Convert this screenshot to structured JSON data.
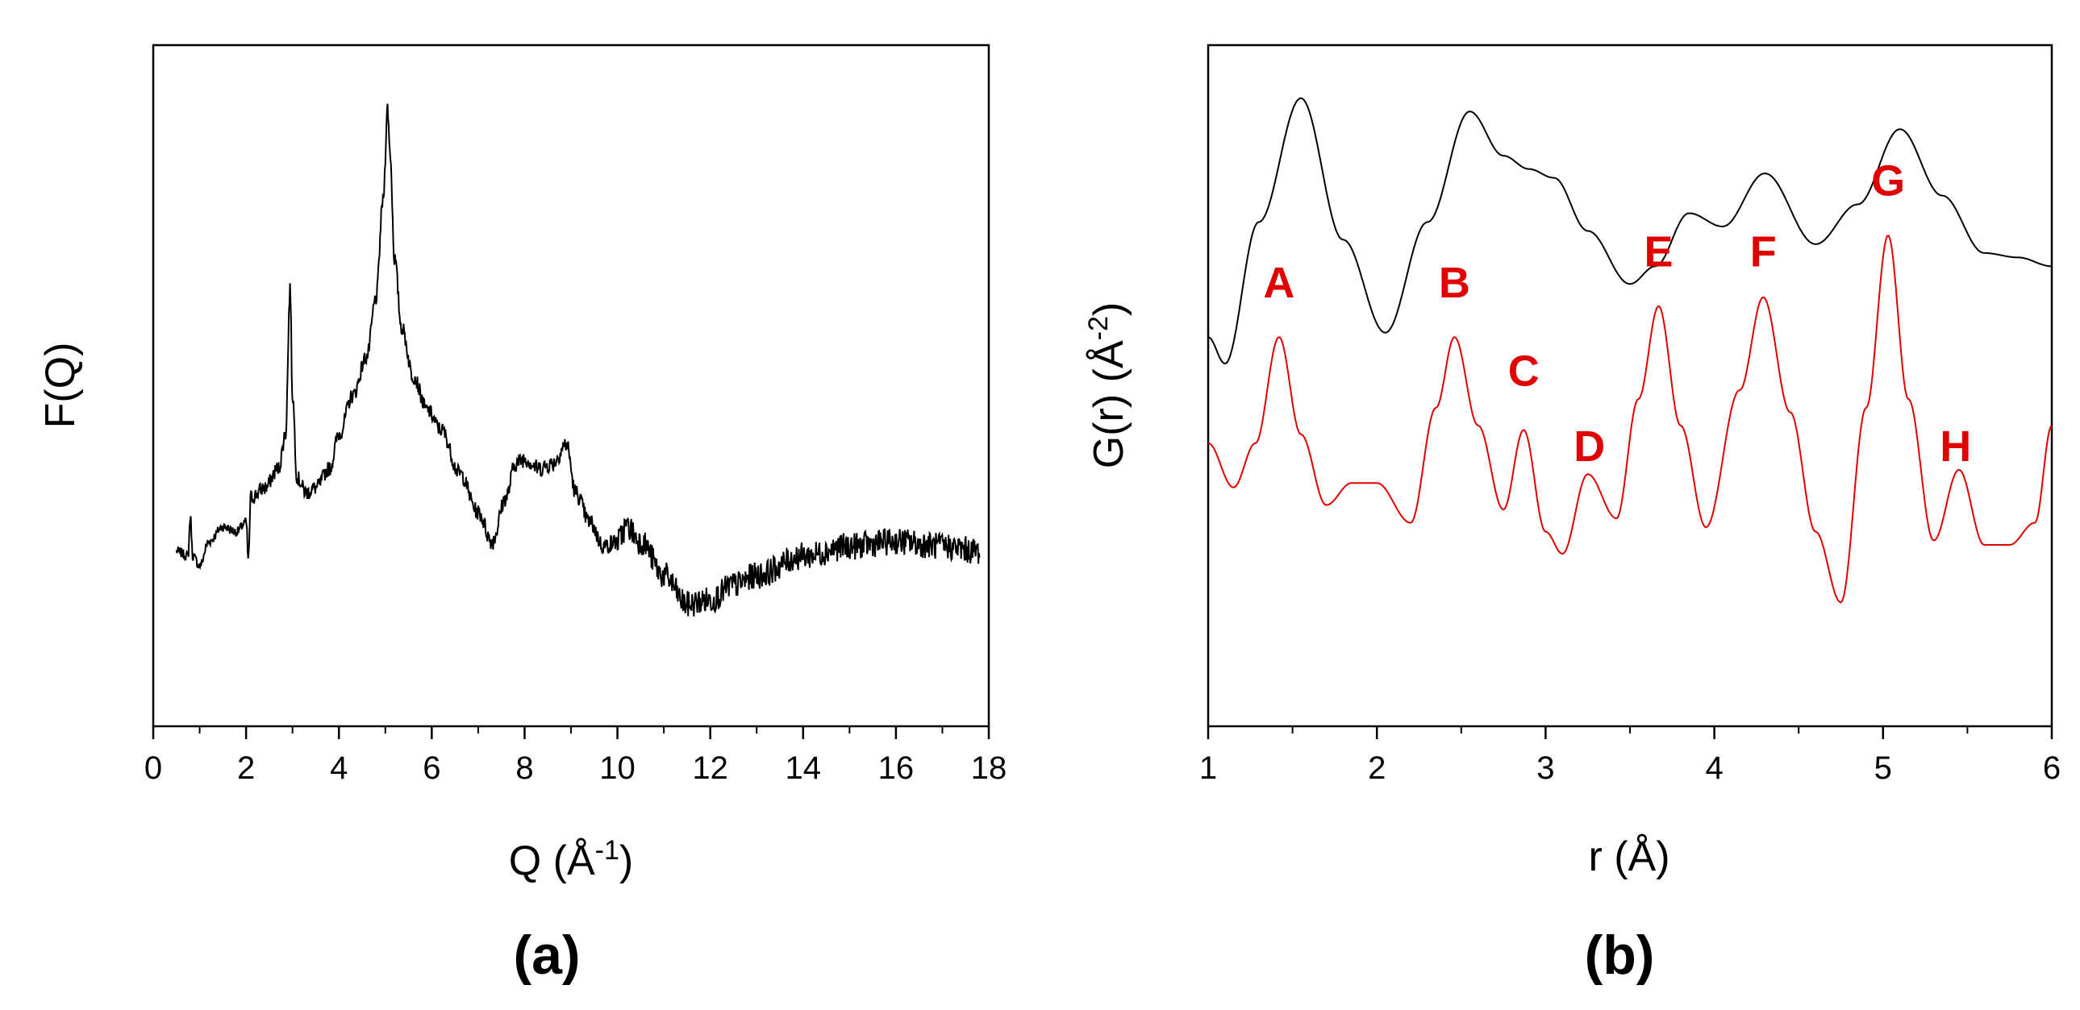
{
  "chart_data": [
    {
      "panel": "(a)",
      "type": "line",
      "xlabel": "Q (Å",
      "xlabel_sup": "-1",
      "xlabel_close": ")",
      "ylabel": "F(Q)",
      "xlim": [
        0,
        18
      ],
      "ylim": [
        -1.8,
        5.2
      ],
      "yticks_labeled": false,
      "xticks": [
        0,
        2,
        4,
        6,
        8,
        10,
        12,
        14,
        16,
        18
      ],
      "xtick_labels": [
        "0",
        "2",
        "4",
        "6",
        "8",
        "10",
        "12",
        "14",
        "16",
        "18"
      ],
      "line_color": "#000000",
      "series": [
        {
          "name": "F(Q)",
          "noisy": true,
          "x": [
            0.5,
            0.75,
            0.8,
            0.85,
            1.0,
            1.2,
            1.5,
            1.8,
            2.0,
            2.05,
            2.1,
            2.4,
            2.7,
            2.85,
            2.95,
            3.0,
            3.1,
            3.3,
            3.5,
            3.8,
            4.0,
            4.3,
            4.6,
            4.8,
            4.95,
            5.05,
            5.1,
            5.2,
            5.35,
            5.6,
            5.9,
            6.2,
            6.6,
            7.0,
            7.3,
            7.6,
            7.8,
            8.0,
            8.3,
            8.6,
            8.9,
            9.1,
            9.4,
            9.7,
            10.0,
            10.2,
            10.5,
            11.0,
            11.5,
            12.0,
            12.5,
            13.0,
            14.0,
            15.0,
            16.0,
            17.0,
            17.8
          ],
          "y": [
            0.0,
            -0.05,
            0.35,
            -0.05,
            -0.15,
            0.1,
            0.25,
            0.2,
            0.3,
            -0.1,
            0.55,
            0.65,
            0.85,
            1.2,
            2.7,
            1.6,
            0.75,
            0.6,
            0.65,
            0.85,
            1.2,
            1.6,
            2.0,
            2.6,
            3.6,
            4.55,
            4.1,
            3.0,
            2.3,
            1.8,
            1.45,
            1.25,
            0.8,
            0.4,
            0.1,
            0.55,
            0.9,
            0.95,
            0.85,
            0.9,
            1.1,
            0.6,
            0.3,
            0.05,
            0.1,
            0.25,
            0.1,
            -0.25,
            -0.55,
            -0.5,
            -0.35,
            -0.25,
            -0.05,
            0.05,
            0.1,
            0.05,
            0.0
          ]
        }
      ]
    },
    {
      "panel": "(b)",
      "type": "line",
      "xlabel": "r (Å)",
      "ylabel": "G(r) (Å",
      "ylabel_sup": "-2",
      "ylabel_close": ")",
      "xlim": [
        1,
        6
      ],
      "ylim": [
        -3.5,
        4.2
      ],
      "yticks_labeled": false,
      "xticks": [
        1,
        2,
        3,
        4,
        5,
        6
      ],
      "xtick_labels": [
        "1",
        "2",
        "3",
        "4",
        "5",
        "6"
      ],
      "series": [
        {
          "name": "upper curve",
          "color": "#000000",
          "x": [
            1.0,
            1.1,
            1.3,
            1.55,
            1.8,
            2.05,
            2.3,
            2.55,
            2.75,
            2.9,
            3.05,
            3.25,
            3.5,
            3.65,
            3.85,
            4.05,
            4.3,
            4.6,
            4.85,
            5.1,
            5.35,
            5.6,
            5.8,
            6.0
          ],
          "y": [
            0.9,
            0.6,
            2.2,
            3.6,
            2.0,
            0.95,
            2.2,
            3.45,
            2.95,
            2.8,
            2.7,
            2.1,
            1.5,
            1.7,
            2.3,
            2.15,
            2.75,
            1.95,
            2.4,
            3.25,
            2.5,
            1.85,
            1.8,
            1.7
          ]
        },
        {
          "name": "lower curve",
          "color": "#e00000",
          "x": [
            1.0,
            1.15,
            1.28,
            1.42,
            1.55,
            1.7,
            1.85,
            2.0,
            2.2,
            2.35,
            2.46,
            2.6,
            2.75,
            2.87,
            3.0,
            3.1,
            3.25,
            3.42,
            3.55,
            3.67,
            3.8,
            3.95,
            4.15,
            4.29,
            4.45,
            4.6,
            4.75,
            4.9,
            5.03,
            5.15,
            5.3,
            5.45,
            5.6,
            5.75,
            5.9,
            6.0
          ],
          "y": [
            -0.3,
            -0.8,
            -0.3,
            0.9,
            -0.2,
            -1.0,
            -0.75,
            -0.75,
            -1.2,
            0.1,
            0.9,
            -0.1,
            -1.05,
            -0.15,
            -1.3,
            -1.55,
            -0.65,
            -1.15,
            0.2,
            1.25,
            -0.1,
            -1.25,
            0.3,
            1.35,
            0.05,
            -1.3,
            -2.1,
            0.1,
            2.05,
            0.2,
            -1.4,
            -0.6,
            -1.45,
            -1.45,
            -1.2,
            -0.1
          ]
        }
      ],
      "annotations": [
        {
          "text": "A",
          "x": 1.42,
          "y": 1.35,
          "color": "#e00000"
        },
        {
          "text": "B",
          "x": 2.46,
          "y": 1.35,
          "color": "#e00000"
        },
        {
          "text": "C",
          "x": 2.87,
          "y": 0.35,
          "color": "#e00000"
        },
        {
          "text": "D",
          "x": 3.26,
          "y": -0.5,
          "color": "#e00000"
        },
        {
          "text": "E",
          "x": 3.67,
          "y": 1.7,
          "color": "#e00000"
        },
        {
          "text": "F",
          "x": 4.29,
          "y": 1.7,
          "color": "#e00000"
        },
        {
          "text": "G",
          "x": 5.03,
          "y": 2.5,
          "color": "#e00000"
        },
        {
          "text": "H",
          "x": 5.43,
          "y": -0.5,
          "color": "#e00000"
        }
      ]
    }
  ]
}
